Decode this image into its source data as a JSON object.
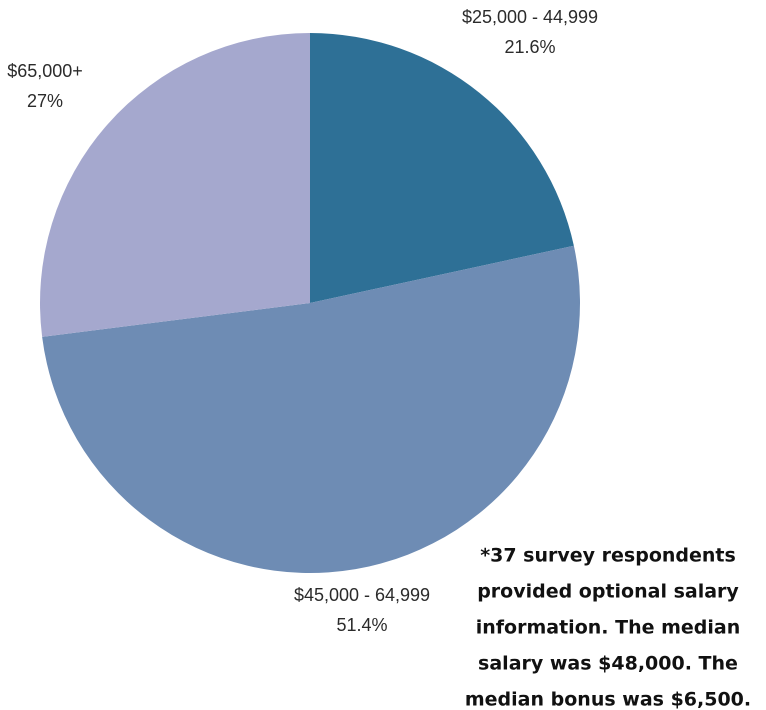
{
  "chart_data": {
    "type": "pie",
    "categories": [
      "$25,000 - 44,999",
      "$45,000 - 64,999",
      "$65,000+"
    ],
    "values": [
      21.6,
      51.4,
      27
    ],
    "value_labels": [
      "21.6%",
      "51.4%",
      "27%"
    ],
    "colors": [
      "#2e7096",
      "#6e8cb4",
      "#a5a8ce"
    ],
    "note": [
      "*37 survey respondents",
      "provided optional salary",
      "information. The median",
      "salary was $48,000. The",
      "median bonus was $6,500."
    ]
  }
}
